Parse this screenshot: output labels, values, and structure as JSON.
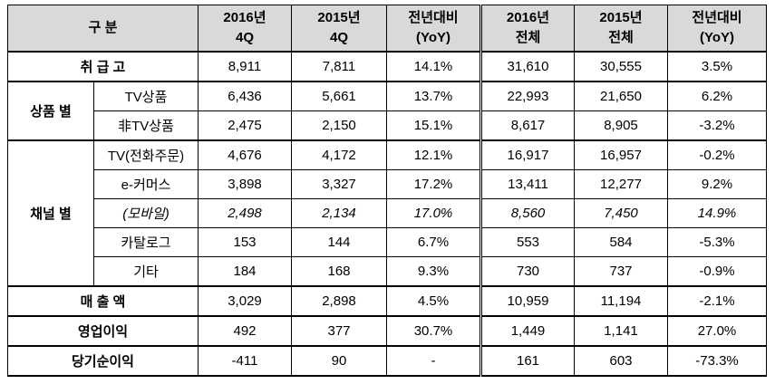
{
  "table": {
    "header": {
      "label": "구 분",
      "columns": [
        [
          "2016년",
          "4Q"
        ],
        [
          "2015년",
          "4Q"
        ],
        [
          "전년대비",
          "(YoY)"
        ],
        [
          "2016년",
          "전체"
        ],
        [
          "2015년",
          "전체"
        ],
        [
          "전년대비",
          "(YoY)"
        ]
      ]
    },
    "sections": [
      {
        "label": "취 급 고",
        "cells": [
          "8,911",
          "7,811",
          "14.1%",
          "31,610",
          "30,555",
          "3.5%"
        ]
      },
      {
        "label": "상품 별",
        "rows": [
          {
            "label": "TV상품",
            "cells": [
              "6,436",
              "5,661",
              "13.7%",
              "22,993",
              "21,650",
              "6.2%"
            ]
          },
          {
            "label": "非TV상품",
            "cells": [
              "2,475",
              "2,150",
              "15.1%",
              "8,617",
              "8,905",
              "-3.2%"
            ]
          }
        ]
      },
      {
        "label": "채널 별",
        "rows": [
          {
            "label": "TV(전화주문)",
            "cells": [
              "4,676",
              "4,172",
              "12.1%",
              "16,917",
              "16,957",
              "-0.2%"
            ]
          },
          {
            "label": "e-커머스",
            "cells": [
              "3,898",
              "3,327",
              "17.2%",
              "13,411",
              "12,277",
              "9.2%"
            ]
          },
          {
            "label": "(모바일)",
            "italic": true,
            "cells": [
              "2,498",
              "2,134",
              "17.0%",
              "8,560",
              "7,450",
              "14.9%"
            ]
          },
          {
            "label": "카탈로그",
            "cells": [
              "153",
              "144",
              "6.7%",
              "553",
              "584",
              "-5.3%"
            ]
          },
          {
            "label": "기타",
            "cells": [
              "184",
              "168",
              "9.3%",
              "730",
              "737",
              "-0.9%"
            ]
          }
        ]
      },
      {
        "label": "매 출 액",
        "cells": [
          "3,029",
          "2,898",
          "4.5%",
          "10,959",
          "11,194",
          "-2.1%"
        ]
      },
      {
        "label": "영업이익",
        "cells": [
          "492",
          "377",
          "30.7%",
          "1,449",
          "1,141",
          "27.0%"
        ]
      },
      {
        "label": "당기순이익",
        "cells": [
          "-411",
          "90",
          "-",
          "161",
          "603",
          "-73.3%"
        ]
      }
    ]
  }
}
